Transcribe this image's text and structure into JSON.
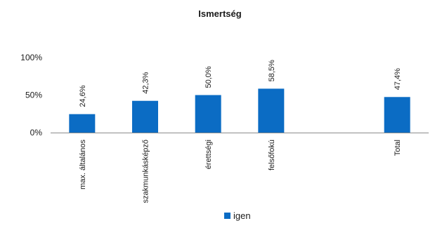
{
  "chart_data": {
    "type": "bar",
    "title": "Ismertség",
    "xlabel": "",
    "ylabel": "",
    "categories": [
      "max. általános",
      "szakmunkásképző",
      "érettségi",
      "felsőfokú",
      "",
      "Total"
    ],
    "series": [
      {
        "name": "igen",
        "values": [
          24.6,
          42.3,
          50.0,
          58.5,
          null,
          47.4
        ],
        "labels": [
          "24,6%",
          "42,3%",
          "50,0%",
          "58,5%",
          "",
          "47,4%"
        ]
      }
    ],
    "y_ticks": [
      "0%",
      "50%",
      "100%"
    ],
    "y_tick_values": [
      0,
      50,
      100
    ],
    "ylim": [
      0,
      100
    ],
    "grid": false,
    "legend_position": "bottom",
    "colors": {
      "bar": "#0b6cc4",
      "axis": "#8c8c8c",
      "text": "#1a1a1a"
    }
  }
}
